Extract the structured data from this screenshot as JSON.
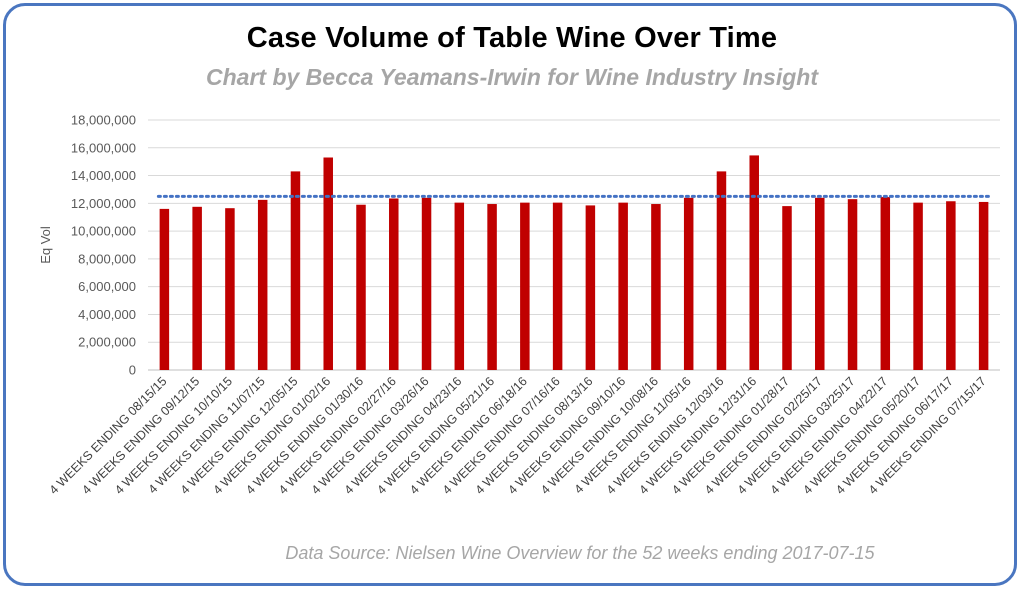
{
  "colors": {
    "bar": "#c00000",
    "average_line": "#4472c4",
    "frame": "#4a76c0"
  },
  "chart_data": {
    "type": "bar",
    "title": "Case Volume of Table Wine Over Time",
    "subtitle": "Chart by Becca Yeamans-Irwin for Wine Industry Insight",
    "footnote": "Data Source: Nielsen Wine Overview for the 52 weeks ending 2017-07-15",
    "ylabel": "Eq Vol",
    "xlabel": "",
    "ylim": [
      0,
      18000000
    ],
    "yticks": [
      {
        "value": 0,
        "label": "0"
      },
      {
        "value": 2000000,
        "label": "2,000,000"
      },
      {
        "value": 4000000,
        "label": "4,000,000"
      },
      {
        "value": 6000000,
        "label": "6,000,000"
      },
      {
        "value": 8000000,
        "label": "8,000,000"
      },
      {
        "value": 10000000,
        "label": "10,000,000"
      },
      {
        "value": 12000000,
        "label": "12,000,000"
      },
      {
        "value": 14000000,
        "label": "14,000,000"
      },
      {
        "value": 16000000,
        "label": "16,000,000"
      },
      {
        "value": 18000000,
        "label": "18,000,000"
      }
    ],
    "grid": "horizontal",
    "average_line": 12500000,
    "categories": [
      "4 WEEKS ENDING 08/15/15",
      "4 WEEKS ENDING 09/12/15",
      "4 WEEKS ENDING 10/10/15",
      "4 WEEKS ENDING 11/07/15",
      "4 WEEKS ENDING 12/05/15",
      "4 WEEKS ENDING 01/02/16",
      "4 WEEKS ENDING 01/30/16",
      "4 WEEKS ENDING 02/27/16",
      "4 WEEKS ENDING 03/26/16",
      "4 WEEKS ENDING 04/23/16",
      "4 WEEKS ENDING 05/21/16",
      "4 WEEKS ENDING 06/18/16",
      "4 WEEKS ENDING 07/16/16",
      "4 WEEKS ENDING 08/13/16",
      "4 WEEKS ENDING 09/10/16",
      "4 WEEKS ENDING 10/08/16",
      "4 WEEKS ENDING 11/05/16",
      "4 WEEKS ENDING 12/03/16",
      "4 WEEKS ENDING 12/31/16",
      "4 WEEKS ENDING 01/28/17",
      "4 WEEKS ENDING 02/25/17",
      "4 WEEKS ENDING 03/25/17",
      "4 WEEKS ENDING 04/22/17",
      "4 WEEKS ENDING 05/20/17",
      "4 WEEKS ENDING 06/17/17",
      "4 WEEKS ENDING 07/15/17"
    ],
    "values": [
      11600000,
      11750000,
      11650000,
      12250000,
      14300000,
      15300000,
      11900000,
      12350000,
      12400000,
      12050000,
      11950000,
      12050000,
      12050000,
      11850000,
      12050000,
      11950000,
      12400000,
      14300000,
      15450000,
      11800000,
      12400000,
      12300000,
      12450000,
      12050000,
      12150000,
      12100000
    ]
  }
}
